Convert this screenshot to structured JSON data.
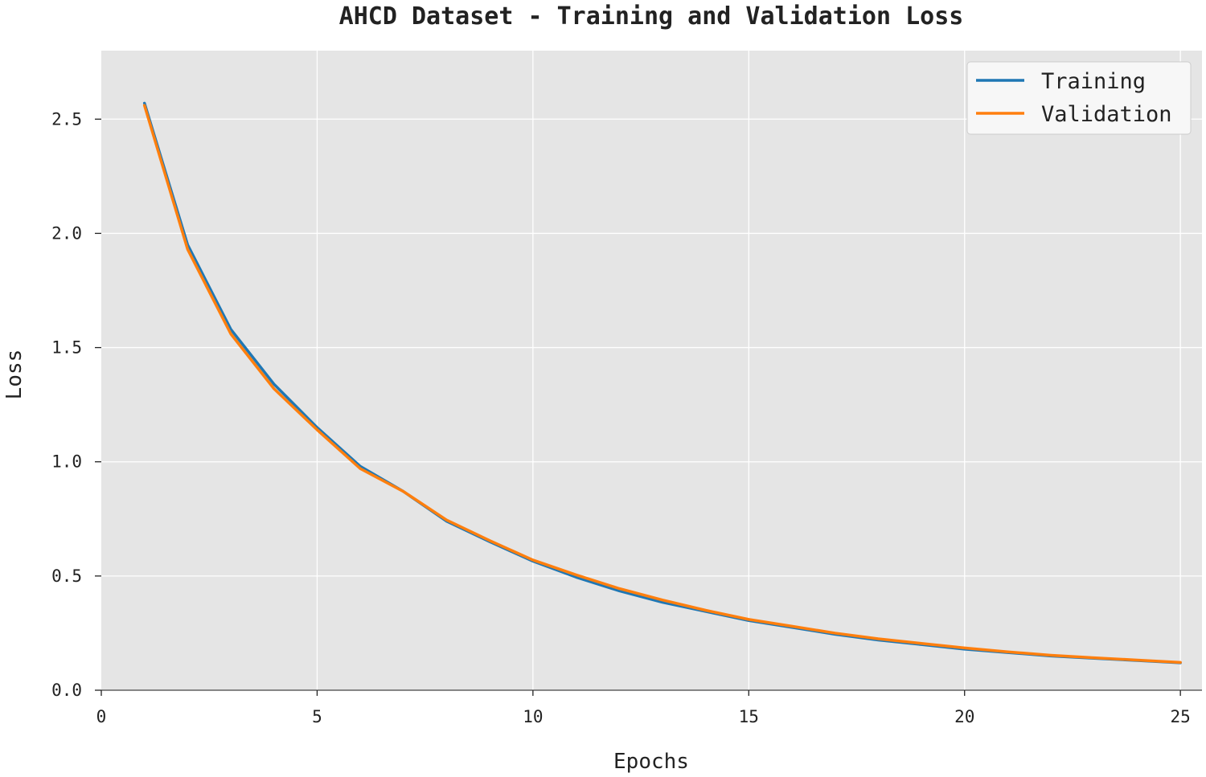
{
  "chart_data": {
    "type": "line",
    "title": "AHCD Dataset - Training and Validation Loss",
    "xlabel": "Epochs",
    "ylabel": "Loss",
    "xlim": [
      0,
      25.5
    ],
    "ylim": [
      0,
      2.8
    ],
    "xticks": [
      0,
      5,
      10,
      15,
      20,
      25
    ],
    "yticks": [
      0.0,
      0.5,
      1.0,
      1.5,
      2.0,
      2.5
    ],
    "xtick_labels": [
      "0",
      "5",
      "10",
      "15",
      "20",
      "25"
    ],
    "ytick_labels": [
      "0.0",
      "0.5",
      "1.0",
      "1.5",
      "2.0",
      "2.5"
    ],
    "grid": true,
    "legend_position": "top-right",
    "x": [
      1,
      2,
      3,
      4,
      5,
      6,
      7,
      8,
      9,
      10,
      11,
      12,
      13,
      14,
      15,
      16,
      17,
      18,
      19,
      20,
      21,
      22,
      23,
      24,
      25
    ],
    "series": [
      {
        "name": "Training",
        "color": "#1f77b4",
        "values": [
          2.57,
          1.95,
          1.58,
          1.34,
          1.15,
          0.98,
          0.87,
          0.74,
          0.65,
          0.565,
          0.495,
          0.435,
          0.385,
          0.345,
          0.305,
          0.275,
          0.245,
          0.22,
          0.2,
          0.18,
          0.165,
          0.15,
          0.14,
          0.13,
          0.12
        ]
      },
      {
        "name": "Validation",
        "color": "#ff7f0e",
        "values": [
          2.56,
          1.93,
          1.56,
          1.32,
          1.14,
          0.97,
          0.87,
          0.745,
          0.655,
          0.57,
          0.505,
          0.445,
          0.395,
          0.35,
          0.31,
          0.28,
          0.25,
          0.225,
          0.205,
          0.185,
          0.168,
          0.153,
          0.142,
          0.132,
          0.122
        ]
      }
    ]
  }
}
